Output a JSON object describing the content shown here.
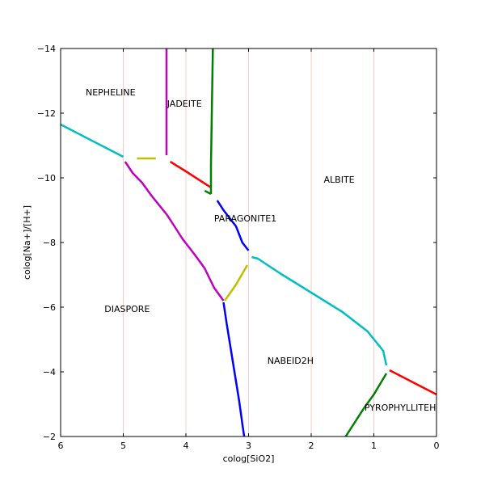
{
  "chart_data": {
    "type": "line",
    "title": "",
    "xlabel": "colog[SiO2]",
    "ylabel": "colog[Na+]/[H+]",
    "xlim": [
      6,
      0
    ],
    "ylim": [
      -2,
      -14
    ],
    "x_ticks": [
      6,
      5,
      4,
      3,
      2,
      1,
      0
    ],
    "y_ticks": [
      -2,
      -4,
      -6,
      -8,
      -10,
      -12,
      -14
    ],
    "x_tick_labels": [
      "6",
      "5",
      "4",
      "3",
      "2",
      "1",
      "0"
    ],
    "y_tick_labels": [
      "−2",
      "−4",
      "−6",
      "−8",
      "−10",
      "−12",
      "−14"
    ],
    "grid": "vertical lines only at x ticks, light pink",
    "region_labels": [
      {
        "text": "NEPHELINE",
        "x": 5.6,
        "y": -12.65
      },
      {
        "text": "JADEITE",
        "x": 4.3,
        "y": -12.3
      },
      {
        "text": "ALBITE",
        "x": 1.8,
        "y": -9.95
      },
      {
        "text": "PARAGONITE1",
        "x": 3.55,
        "y": -8.75
      },
      {
        "text": "DIASPORE",
        "x": 5.3,
        "y": -5.95
      },
      {
        "text": "NABEID2H",
        "x": 2.7,
        "y": -4.35
      },
      {
        "text": "PYROPHYLLITEH",
        "x": 1.15,
        "y": -2.9
      }
    ],
    "series": [
      {
        "color": "#00bfbf",
        "points": [
          [
            6,
            -11.65
          ],
          [
            5,
            -10.65
          ]
        ]
      },
      {
        "color": "#00bfbf",
        "points": [
          [
            2.95,
            -7.55
          ],
          [
            2.85,
            -7.5
          ],
          [
            2.5,
            -7.05
          ],
          [
            2,
            -6.45
          ],
          [
            1.5,
            -5.85
          ],
          [
            1.1,
            -5.25
          ],
          [
            0.85,
            -4.65
          ],
          [
            0.8,
            -4.2
          ]
        ]
      },
      {
        "color": "#bfbf00",
        "points": [
          [
            4.78,
            -10.6
          ],
          [
            4.48,
            -10.6
          ]
        ]
      },
      {
        "color": "#bfbf00",
        "points": [
          [
            3.38,
            -6.2
          ],
          [
            3.2,
            -6.7
          ],
          [
            3.02,
            -7.3
          ]
        ]
      },
      {
        "color": "#bf00bf",
        "points": [
          [
            4.31,
            -10.7
          ],
          [
            4.31,
            -14.0
          ]
        ]
      },
      {
        "color": "#bf00bf",
        "points": [
          [
            4.97,
            -10.5
          ],
          [
            4.85,
            -10.15
          ],
          [
            4.7,
            -9.85
          ],
          [
            4.55,
            -9.45
          ],
          [
            4.3,
            -8.85
          ],
          [
            4.05,
            -8.1
          ],
          [
            3.85,
            -7.6
          ],
          [
            3.7,
            -7.2
          ],
          [
            3.55,
            -6.6
          ],
          [
            3.4,
            -6.2
          ]
        ]
      },
      {
        "color": "#ff0000",
        "points": [
          [
            4.25,
            -10.5
          ],
          [
            4.0,
            -10.2
          ],
          [
            3.6,
            -9.7
          ]
        ]
      },
      {
        "color": "#ff0000",
        "points": [
          [
            0.75,
            -4.05
          ],
          [
            0.4,
            -3.7
          ],
          [
            0.0,
            -3.3
          ]
        ]
      },
      {
        "color": "#008000",
        "points": [
          [
            3.6,
            -9.5
          ],
          [
            3.6,
            -10.4
          ],
          [
            3.57,
            -14.0
          ]
        ]
      },
      {
        "color": "#008000",
        "points": [
          [
            3.6,
            -9.5
          ],
          [
            3.7,
            -9.6
          ]
        ]
      },
      {
        "color": "#008000",
        "points": [
          [
            1.45,
            -2.0
          ],
          [
            1.3,
            -2.45
          ],
          [
            1.15,
            -2.9
          ],
          [
            1.0,
            -3.3
          ],
          [
            0.8,
            -3.95
          ]
        ]
      },
      {
        "color": "#0000ff",
        "points": [
          [
            3.5,
            -9.3
          ],
          [
            3.4,
            -9.0
          ],
          [
            3.2,
            -8.5
          ],
          [
            3.1,
            -8.0
          ],
          [
            3.0,
            -7.75
          ]
        ]
      },
      {
        "color": "#0000ff",
        "points": [
          [
            3.4,
            -6.15
          ],
          [
            3.35,
            -5.5
          ],
          [
            3.3,
            -4.9
          ],
          [
            3.25,
            -4.3
          ],
          [
            3.2,
            -3.7
          ],
          [
            3.15,
            -3.1
          ],
          [
            3.1,
            -2.4
          ],
          [
            3.07,
            -2.0
          ]
        ]
      }
    ]
  }
}
